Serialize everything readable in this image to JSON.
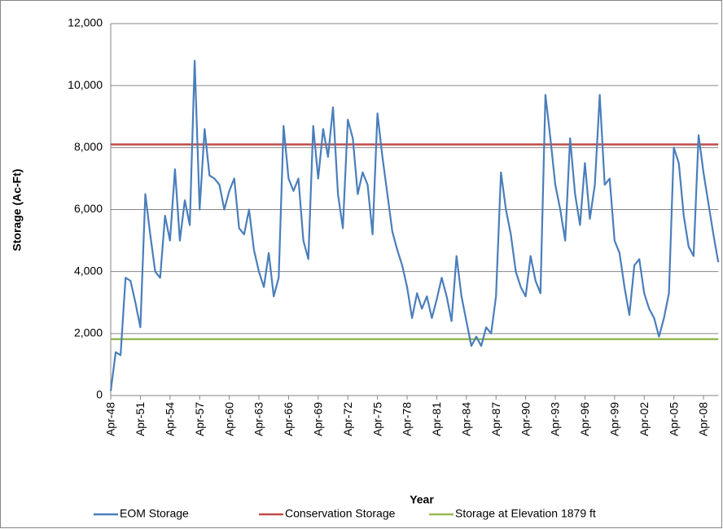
{
  "chart_data": {
    "type": "line",
    "x_label": "Year",
    "y_label": "Storage (Ac-Ft)",
    "categories": [
      "Apr-48",
      null,
      null,
      null,
      null,
      null,
      "Apr-51",
      null,
      null,
      null,
      null,
      null,
      "Apr-54",
      null,
      null,
      null,
      null,
      null,
      "Apr-57",
      null,
      null,
      null,
      null,
      null,
      "Apr-60",
      null,
      null,
      null,
      null,
      null,
      "Apr-63",
      null,
      null,
      null,
      null,
      null,
      "Apr-66",
      null,
      null,
      null,
      null,
      null,
      "Apr-69",
      null,
      null,
      null,
      null,
      null,
      "Apr-72",
      null,
      null,
      null,
      null,
      null,
      "Apr-75",
      null,
      null,
      null,
      null,
      null,
      "Apr-78",
      null,
      null,
      null,
      null,
      null,
      "Apr-81",
      null,
      null,
      null,
      null,
      null,
      "Apr-84",
      null,
      null,
      null,
      null,
      null,
      "Apr-87",
      null,
      null,
      null,
      null,
      null,
      "Apr-90",
      null,
      null,
      null,
      null,
      null,
      "Apr-93",
      null,
      null,
      null,
      null,
      null,
      "Apr-96",
      null,
      null,
      null,
      null,
      null,
      "Apr-99",
      null,
      null,
      null,
      null,
      null,
      "Apr-02",
      null,
      null,
      null,
      null,
      null,
      "Apr-05",
      null,
      null,
      null,
      null,
      null,
      "Apr-08",
      null,
      null,
      null
    ],
    "series": [
      {
        "name": "EOM Storage",
        "color": "#4a7ebb",
        "values": [
          150,
          1400,
          1300,
          3800,
          3700,
          3000,
          2200,
          6500,
          5200,
          4000,
          3800,
          5800,
          5000,
          7300,
          5000,
          6300,
          5500,
          10800,
          6000,
          8600,
          7100,
          7000,
          6800,
          6000,
          6600,
          7000,
          5400,
          5200,
          6000,
          4700,
          4000,
          3500,
          4600,
          3200,
          3800,
          8700,
          7000,
          6600,
          7000,
          5000,
          4400,
          8700,
          7000,
          8600,
          7700,
          9300,
          6500,
          5400,
          8900,
          8300,
          6500,
          7200,
          6800,
          5200,
          9100,
          7700,
          6500,
          5300,
          4700,
          4200,
          3500,
          2500,
          3300,
          2800,
          3200,
          2500,
          3100,
          3800,
          3200,
          2400,
          4500,
          3200,
          2400,
          1600,
          1900,
          1600,
          2200,
          2000,
          3200,
          7200,
          6000,
          5200,
          4000,
          3500,
          3200,
          4500,
          3700,
          3300,
          9700,
          8300,
          6800,
          6000,
          5000,
          8300,
          6500,
          5500,
          7500,
          5700,
          6800,
          9700,
          6800,
          7000,
          5000,
          4600,
          3500,
          2600,
          4200,
          4400,
          3300,
          2800,
          2500,
          1900,
          2500,
          3300,
          8000,
          7500,
          5800,
          4800,
          4500,
          8400,
          7200,
          6200,
          5200,
          4300
        ]
      },
      {
        "name": "Conservation Storage",
        "color": "#be4b48",
        "values": [
          8100,
          8100,
          8100,
          8100,
          8100,
          8100,
          8100,
          8100,
          8100,
          8100,
          8100,
          8100,
          8100,
          8100,
          8100,
          8100,
          8100,
          8100,
          8100,
          8100,
          8100,
          8100,
          8100,
          8100,
          8100,
          8100,
          8100,
          8100,
          8100,
          8100,
          8100,
          8100,
          8100,
          8100,
          8100,
          8100,
          8100,
          8100,
          8100,
          8100,
          8100,
          8100,
          8100,
          8100,
          8100,
          8100,
          8100,
          8100,
          8100,
          8100,
          8100,
          8100,
          8100,
          8100,
          8100,
          8100,
          8100,
          8100,
          8100,
          8100,
          8100,
          8100,
          8100,
          8100,
          8100,
          8100,
          8100,
          8100,
          8100,
          8100,
          8100,
          8100,
          8100,
          8100,
          8100,
          8100,
          8100,
          8100,
          8100,
          8100,
          8100,
          8100,
          8100,
          8100,
          8100,
          8100,
          8100,
          8100,
          8100,
          8100,
          8100,
          8100,
          8100,
          8100,
          8100,
          8100,
          8100,
          8100,
          8100,
          8100,
          8100,
          8100,
          8100,
          8100,
          8100,
          8100,
          8100,
          8100,
          8100,
          8100,
          8100,
          8100,
          8100,
          8100,
          8100,
          8100,
          8100,
          8100,
          8100,
          8100,
          8100,
          8100,
          8100,
          8100
        ]
      },
      {
        "name": "Storage at Elevation 1879 ft",
        "color": "#98b954",
        "values": [
          1820,
          1820,
          1820,
          1820,
          1820,
          1820,
          1820,
          1820,
          1820,
          1820,
          1820,
          1820,
          1820,
          1820,
          1820,
          1820,
          1820,
          1820,
          1820,
          1820,
          1820,
          1820,
          1820,
          1820,
          1820,
          1820,
          1820,
          1820,
          1820,
          1820,
          1820,
          1820,
          1820,
          1820,
          1820,
          1820,
          1820,
          1820,
          1820,
          1820,
          1820,
          1820,
          1820,
          1820,
          1820,
          1820,
          1820,
          1820,
          1820,
          1820,
          1820,
          1820,
          1820,
          1820,
          1820,
          1820,
          1820,
          1820,
          1820,
          1820,
          1820,
          1820,
          1820,
          1820,
          1820,
          1820,
          1820,
          1820,
          1820,
          1820,
          1820,
          1820,
          1820,
          1820,
          1820,
          1820,
          1820,
          1820,
          1820,
          1820,
          1820,
          1820,
          1820,
          1820,
          1820,
          1820,
          1820,
          1820,
          1820,
          1820,
          1820,
          1820,
          1820,
          1820,
          1820,
          1820,
          1820,
          1820,
          1820,
          1820,
          1820,
          1820,
          1820,
          1820,
          1820,
          1820,
          1820,
          1820,
          1820,
          1820,
          1820,
          1820,
          1820,
          1820,
          1820,
          1820,
          1820,
          1820,
          1820,
          1820,
          1820,
          1820,
          1820,
          1820
        ]
      }
    ],
    "ylim": [
      0,
      12000
    ],
    "yticks": [
      0,
      {
        "value": 2000,
        "label": "2,000"
      },
      {
        "value": 4000,
        "label": "4,000"
      },
      {
        "value": 6000,
        "label": "6,000"
      },
      {
        "value": 8000,
        "label": "8,000"
      },
      {
        "value": 10000,
        "label": "10,000"
      },
      {
        "value": 12000,
        "label": "12,000"
      }
    ],
    "grid": true,
    "legend": "bottom"
  }
}
